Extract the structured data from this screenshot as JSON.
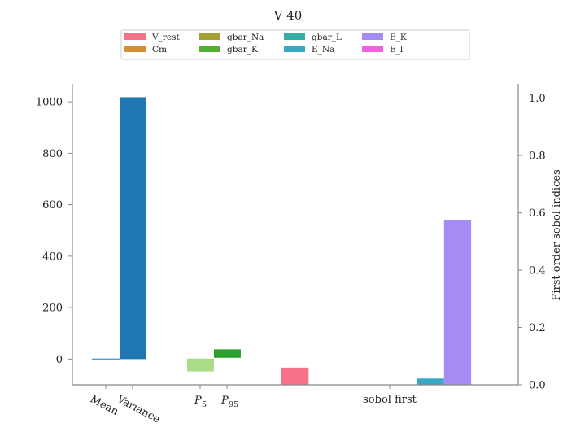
{
  "chart_data": {
    "type": "bar",
    "title": "V 40",
    "legend": {
      "placement": "top-center",
      "entries": [
        {
          "label": "V_rest",
          "color": "#f77189"
        },
        {
          "label": "Cm",
          "color": "#d58c32"
        },
        {
          "label": "gbar_Na",
          "color": "#a4a031"
        },
        {
          "label": "gbar_K",
          "color": "#50b131"
        },
        {
          "label": "gbar_L",
          "color": "#36ada4"
        },
        {
          "label": "E_Na",
          "color": "#38a9c5"
        },
        {
          "label": "E_K",
          "color": "#a48cf4"
        },
        {
          "label": "E_l",
          "color": "#f561dd"
        }
      ]
    },
    "left_axis": {
      "ylim": [
        -100,
        1070
      ],
      "ticks": [
        0,
        200,
        400,
        600,
        800,
        1000
      ]
    },
    "right_axis": {
      "label": "First order sobol indices",
      "ylim": [
        0,
        1.05
      ],
      "ticks": [
        "0.0",
        "0.2",
        "0.4",
        "0.6",
        "0.8",
        "1.0"
      ]
    },
    "xticks": [
      {
        "label": "Mean",
        "rotated": true
      },
      {
        "label": "Variance",
        "rotated": true
      },
      {
        "label": "P",
        "sub": "5",
        "rotated": false
      },
      {
        "label": "P",
        "sub": "95",
        "rotated": false
      },
      {
        "label": "sobol first",
        "rotated": false
      }
    ],
    "series_left": [
      {
        "name": "Mean",
        "bottom": 0,
        "top": 2,
        "color": "#1f77b4"
      },
      {
        "name": "Variance",
        "bottom": 0,
        "top": 1018,
        "color": "#1f77b4"
      },
      {
        "name": "P_5",
        "bottom": -48,
        "top": 2,
        "color": "#aadd88"
      },
      {
        "name": "P_95",
        "bottom": 5,
        "top": 38,
        "color": "#2ca02c"
      }
    ],
    "sobol_first": [
      {
        "param": "V_rest",
        "value": 0.06,
        "color": "#f77189"
      },
      {
        "param": "Cm",
        "value": 0.0,
        "color": "#d58c32"
      },
      {
        "param": "gbar_Na",
        "value": 0.0,
        "color": "#a4a031"
      },
      {
        "param": "gbar_K",
        "value": 0.0,
        "color": "#50b131"
      },
      {
        "param": "gbar_L",
        "value": 0.0,
        "color": "#36ada4"
      },
      {
        "param": "E_Na",
        "value": 0.022,
        "color": "#38a9c5"
      },
      {
        "param": "E_K",
        "value": 0.576,
        "color": "#a48cf4"
      },
      {
        "param": "E_l",
        "value": 0.0,
        "color": "#f561dd"
      }
    ]
  }
}
